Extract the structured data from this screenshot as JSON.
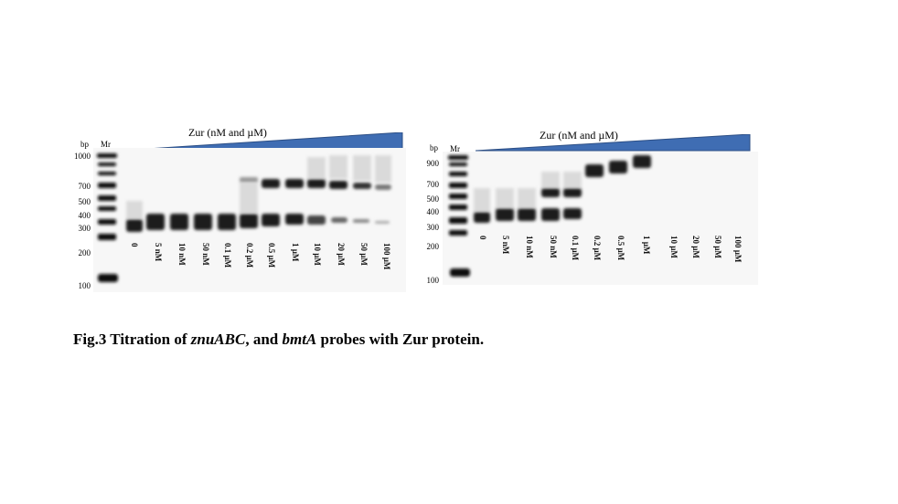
{
  "caption": {
    "prefix": "Fig.3 Titration of ",
    "gene1": "znuABC",
    "middle": ", and ",
    "gene2": "bmtA",
    "suffix": " probes with Zur protein."
  },
  "panels": [
    {
      "id": "znuABC",
      "zur_label": "Zur (nM and µM)",
      "bp_header": "bp",
      "marker_header": "Mr",
      "ladder_labels": [
        "1000",
        "700",
        "500",
        "400",
        "300",
        "200",
        "100"
      ],
      "lane_labels": [
        "0",
        "5 nM",
        "10 nM",
        "50 nM",
        "0.1 µM",
        "0.2 µM",
        "0.5 µM",
        "1 µM",
        "10 µM",
        "20 µM",
        "50 µM",
        "100 µM"
      ],
      "wedge_color": "#3f6db3"
    },
    {
      "id": "bmtA",
      "zur_label": "Zur (nM and µM)",
      "bp_header": "bp",
      "marker_header": "Mr",
      "ladder_labels": [
        "900",
        "700",
        "500",
        "400",
        "300",
        "200",
        "100"
      ],
      "lane_labels": [
        "0",
        "5 nM",
        "10 nM",
        "50 nM",
        "0.1 µM",
        "0.2 µM",
        "0.5 µM",
        "1 µM",
        "10 µM",
        "20 µM",
        "50 µM",
        "100 µM"
      ],
      "wedge_color": "#3f6db3"
    }
  ]
}
